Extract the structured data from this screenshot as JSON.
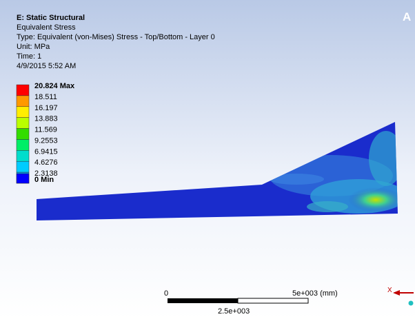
{
  "header": {
    "analysis": "E: Static Structural",
    "result": "Equivalent Stress",
    "type": "Type: Equivalent (von-Mises) Stress - Top/Bottom - Layer 0",
    "unit": "Unit: MPa",
    "time": "Time: 1",
    "date": "4/9/2015 5:52 AM"
  },
  "corner_label": "A",
  "legend": [
    {
      "label": "20.824 Max",
      "color": "#ff0000"
    },
    {
      "label": "18.511",
      "color": "#ff9900"
    },
    {
      "label": "16.197",
      "color": "#ffee00"
    },
    {
      "label": "13.883",
      "color": "#bbff00"
    },
    {
      "label": "11.569",
      "color": "#33dd00"
    },
    {
      "label": "9.2553",
      "color": "#00ee66"
    },
    {
      "label": "6.9415",
      "color": "#00ddcc"
    },
    {
      "label": "4.6276",
      "color": "#00ccff"
    },
    {
      "label": "2.3138",
      "color": "#0099ee"
    },
    {
      "label": "0 Min",
      "color": "#0000ff"
    }
  ],
  "scale_bar": {
    "start": "0",
    "end": "5e+003 (mm)",
    "middle": "2.5e+003"
  },
  "triad": {
    "axis": "X"
  }
}
